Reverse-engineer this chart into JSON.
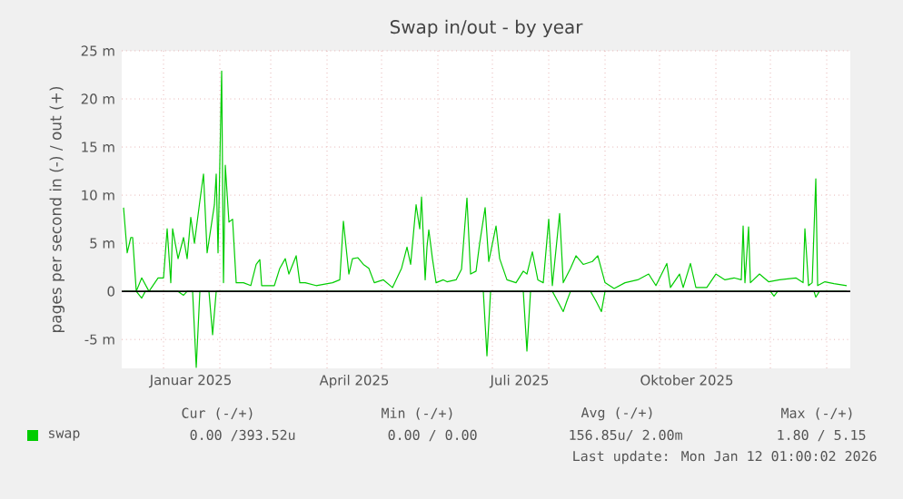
{
  "chart_data": {
    "type": "line",
    "title": "Swap in/out - by year",
    "ylabel": "pages per second in (-) / out (+)",
    "xlim": [
      "2024-12-09",
      "2026-01-14"
    ],
    "xticks": [
      {
        "value": "2025-01-01",
        "label": null
      },
      {
        "value": "2025-01-16",
        "label": "Januar 2025"
      },
      {
        "value": "2025-02-01",
        "label": null
      },
      {
        "value": "2025-03-01",
        "label": null
      },
      {
        "value": "2025-04-01",
        "label": null
      },
      {
        "value": "2025-04-16",
        "label": "April 2025"
      },
      {
        "value": "2025-05-01",
        "label": null
      },
      {
        "value": "2025-06-01",
        "label": null
      },
      {
        "value": "2025-07-01",
        "label": null
      },
      {
        "value": "2025-07-16",
        "label": "Juli 2025"
      },
      {
        "value": "2025-08-01",
        "label": null
      },
      {
        "value": "2025-09-01",
        "label": null
      },
      {
        "value": "2025-10-01",
        "label": null
      },
      {
        "value": "2025-10-16",
        "label": "Oktober 2025"
      },
      {
        "value": "2025-11-01",
        "label": null
      },
      {
        "value": "2025-12-01",
        "label": null
      },
      {
        "value": "2026-01-01",
        "label": null
      }
    ],
    "ylim": [
      -8,
      25
    ],
    "yticks": [
      {
        "value": -5,
        "label": "-5 m"
      },
      {
        "value": 0,
        "label": "0"
      },
      {
        "value": 5,
        "label": "5 m"
      },
      {
        "value": 10,
        "label": "10 m"
      },
      {
        "value": 15,
        "label": "15 m"
      },
      {
        "value": 20,
        "label": "20 m"
      },
      {
        "value": 25,
        "label": "25 m"
      }
    ],
    "grid": true,
    "legend": "bottom left",
    "marker": "none",
    "line_style": "solid",
    "ref_lines": [
      {
        "axis": "y",
        "value": 0,
        "color": "#000000"
      }
    ],
    "series": [
      {
        "name": "swap",
        "color": "#00cc00",
        "x": [
          "2024-12-10",
          "2024-12-12",
          "2024-12-14",
          "2024-12-15",
          "2024-12-17",
          "2024-12-20",
          "2024-12-24",
          "2024-12-29",
          "2025-01-01",
          "2025-01-03",
          "2025-01-05",
          "2025-01-06",
          "2025-01-09",
          "2025-01-12",
          "2025-01-14",
          "2025-01-16",
          "2025-01-18",
          "2025-01-21",
          "2025-01-23",
          "2025-01-25",
          "2025-01-27",
          "2025-01-29",
          "2025-01-30",
          "2025-01-31",
          "2025-02-02",
          "2025-02-03",
          "2025-02-04",
          "2025-02-06",
          "2025-02-08",
          "2025-02-10",
          "2025-02-14",
          "2025-02-18",
          "2025-02-21",
          "2025-02-23",
          "2025-02-24",
          "2025-03-03",
          "2025-03-06",
          "2025-03-09",
          "2025-03-11",
          "2025-03-15",
          "2025-03-17",
          "2025-03-20",
          "2025-03-26",
          "2025-04-04",
          "2025-04-08",
          "2025-04-10",
          "2025-04-13",
          "2025-04-15",
          "2025-04-18",
          "2025-04-21",
          "2025-04-24",
          "2025-04-27",
          "2025-05-02",
          "2025-05-07",
          "2025-05-12",
          "2025-05-15",
          "2025-05-17",
          "2025-05-20",
          "2025-05-22",
          "2025-05-23",
          "2025-05-25",
          "2025-05-26",
          "2025-05-27",
          "2025-05-29",
          "2025-05-31",
          "2025-06-04",
          "2025-06-06",
          "2025-06-11",
          "2025-06-14",
          "2025-06-17",
          "2025-06-19",
          "2025-06-22",
          "2025-06-24",
          "2025-06-27",
          "2025-06-29",
          "2025-07-03",
          "2025-07-05",
          "2025-07-09",
          "2025-07-14",
          "2025-07-18",
          "2025-07-20",
          "2025-07-23",
          "2025-07-26",
          "2025-07-29",
          "2025-08-01",
          "2025-08-03",
          "2025-08-07",
          "2025-08-09",
          "2025-08-13",
          "2025-08-16",
          "2025-08-20",
          "2025-08-25",
          "2025-08-28",
          "2025-09-01",
          "2025-09-06",
          "2025-09-12",
          "2025-09-19",
          "2025-09-25",
          "2025-09-29",
          "2025-10-05",
          "2025-10-07",
          "2025-10-12",
          "2025-10-14",
          "2025-10-18",
          "2025-10-21",
          "2025-10-27",
          "2025-11-01",
          "2025-11-06",
          "2025-11-11",
          "2025-11-15",
          "2025-11-16",
          "2025-11-17",
          "2025-11-19",
          "2025-11-20",
          "2025-11-25",
          "2025-11-30",
          "2025-12-06",
          "2025-12-15",
          "2025-12-19",
          "2025-12-20",
          "2025-12-22",
          "2025-12-24",
          "2025-12-26",
          "2025-12-27",
          "2025-12-31",
          "2026-01-05",
          "2026-01-12"
        ],
        "values": [
          8.7,
          4.0,
          5.6,
          5.6,
          0,
          1.4,
          0,
          1.4,
          1.4,
          6.5,
          0.9,
          6.5,
          3.4,
          5.6,
          3.4,
          7.7,
          5.0,
          9.4,
          12.2,
          4.0,
          6.5,
          9.0,
          12.2,
          4.0,
          22.9,
          0.9,
          13.1,
          7.2,
          7.5,
          0.9,
          0.9,
          0.6,
          2.8,
          3.3,
          0.6,
          0.6,
          2.4,
          3.4,
          1.8,
          3.7,
          0.9,
          0.9,
          0.6,
          0.9,
          1.2,
          7.3,
          1.8,
          3.4,
          3.5,
          2.8,
          2.4,
          0.9,
          1.2,
          0.4,
          2.4,
          4.6,
          2.8,
          9.0,
          6.5,
          9.8,
          1.2,
          4.6,
          6.4,
          3.4,
          0.9,
          1.2,
          1.0,
          1.2,
          2.3,
          9.7,
          1.8,
          2.1,
          5.0,
          8.7,
          3.1,
          6.8,
          3.4,
          1.2,
          0.9,
          2.1,
          1.8,
          4.1,
          1.2,
          0.9,
          7.5,
          0.6,
          8.1,
          0.9,
          2.4,
          3.7,
          2.8,
          3.1,
          3.7,
          0.9,
          0.3,
          0.9,
          1.2,
          1.8,
          0.6,
          2.9,
          0.4,
          1.8,
          0.4,
          2.9,
          0.4,
          0.4,
          1.8,
          1.2,
          1.4,
          1.2,
          6.8,
          0.9,
          6.7,
          0.9,
          1.8,
          1.0,
          1.2,
          1.4,
          0.9,
          6.5,
          0.6,
          0.9,
          11.7,
          0.6,
          1.0,
          0.8,
          0.6
        ]
      },
      {
        "color": "#00cc00",
        "x": [
          "2024-12-10",
          "2024-12-17",
          "2024-12-20",
          "2024-12-22",
          "2025-01-09",
          "2025-01-12",
          "2025-01-14",
          "2025-01-17",
          "2025-01-19",
          "2025-01-21",
          "2025-01-26",
          "2025-01-28",
          "2025-01-30",
          "2025-06-26",
          "2025-06-28",
          "2025-06-30",
          "2025-07-18",
          "2025-07-20",
          "2025-07-22",
          "2025-08-03",
          "2025-08-05",
          "2025-08-09",
          "2025-08-11",
          "2025-08-13",
          "2025-08-24",
          "2025-08-27",
          "2025-08-30",
          "2025-09-01",
          "2025-12-01",
          "2025-12-03",
          "2025-12-05",
          "2025-12-25",
          "2025-12-26",
          "2025-12-28",
          "2026-01-12"
        ],
        "values": [
          0,
          0,
          -0.7,
          0,
          0,
          -0.4,
          0,
          0,
          -7.9,
          0,
          0,
          -4.5,
          0,
          0,
          -6.7,
          0,
          0,
          -6.2,
          0,
          0,
          -0.7,
          -2.1,
          -1.0,
          0,
          0,
          -1.0,
          -2.1,
          0,
          0,
          -0.5,
          0,
          0,
          -0.6,
          0,
          0
        ]
      }
    ],
    "annotations": [
      "Cur (-/+)",
      "Min (-/+)",
      "Avg (-/+)",
      "Max (-/+)",
      "0.00 /393.52u",
      "0.00 / 0.00",
      "156.85u/ 2.00m",
      "1.80 / 5.15",
      "Last update: Mon Jan 12 01:00:02 2026"
    ]
  }
}
